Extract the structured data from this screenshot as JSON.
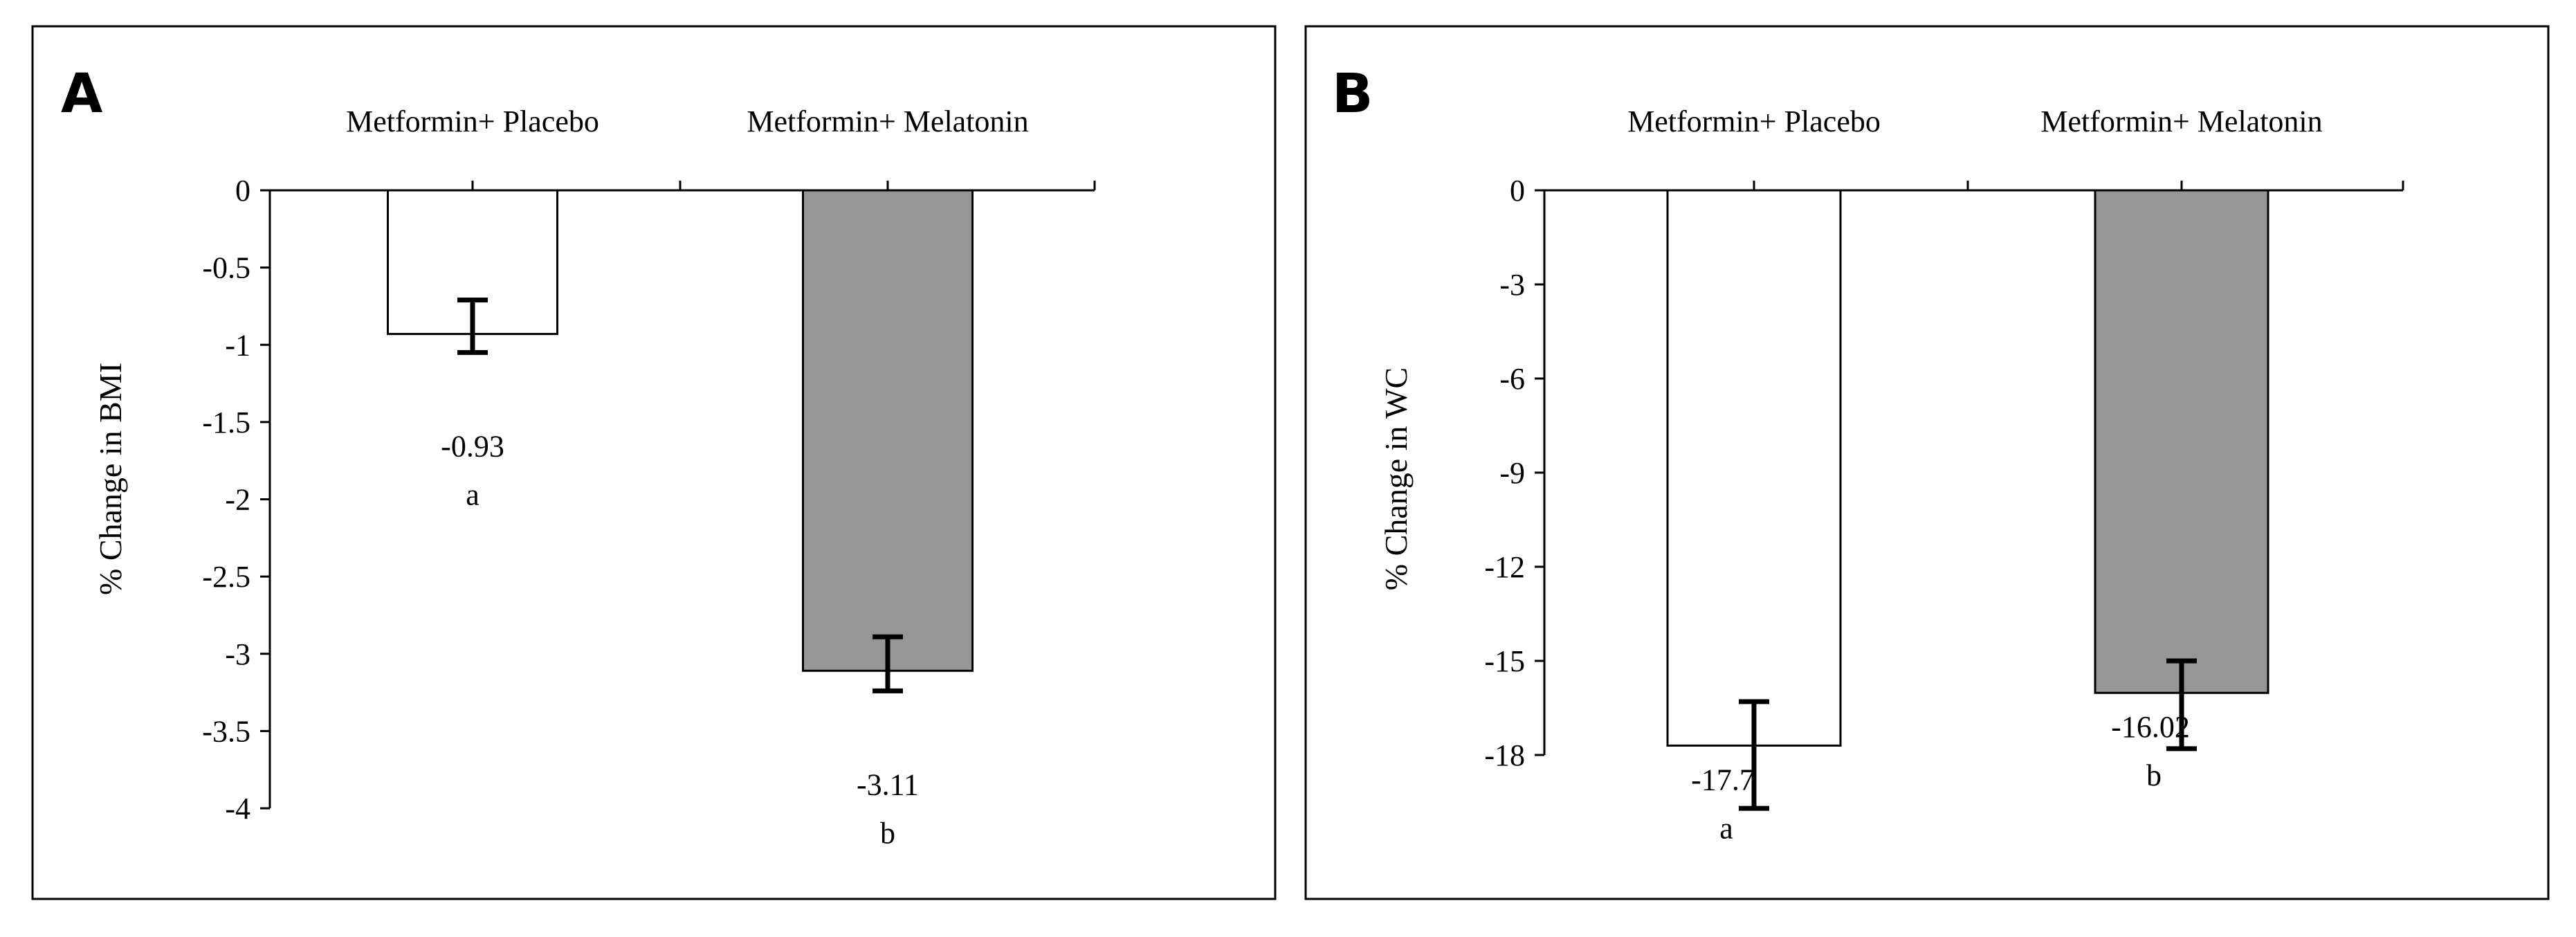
{
  "colors": {
    "frame": "#000000",
    "bar_placebo": "#ffffff",
    "bar_melatonin": "#969696",
    "bar_stroke": "#000000"
  },
  "chart_data": [
    {
      "type": "bar",
      "panel_label": "A",
      "categories": [
        "Metformin+ Placebo",
        "Metformin+ Melatonin"
      ],
      "values": [
        -0.93,
        -3.11
      ],
      "error_bars": [
        [
          -1.05,
          -0.71
        ],
        [
          -3.24,
          -2.89
        ]
      ],
      "data_labels": [
        "-0.93",
        "-3.11"
      ],
      "significance_letters": [
        "a",
        "b"
      ],
      "ylabel": "% Change in BMI",
      "xlabel": "",
      "ylim": [
        -4,
        0
      ],
      "yticks": [
        0,
        -0.5,
        -1,
        -1.5,
        -2,
        -2.5,
        -3,
        -3.5,
        -4
      ],
      "ytick_labels": [
        "0",
        "-0.5",
        "-1",
        "-1.5",
        "-2",
        "-2.5",
        "-3",
        "-3.5",
        "-4"
      ],
      "grid": false,
      "category_labels_position": "top"
    },
    {
      "type": "bar",
      "panel_label": "B",
      "categories": [
        "Metformin+ Placebo",
        "Metformin+ Melatonin"
      ],
      "values": [
        -17.7,
        -16.02
      ],
      "error_bars": [
        [
          -19.7,
          -16.3
        ],
        [
          -17.8,
          -15.0
        ]
      ],
      "data_labels": [
        "-17.7",
        "-16.02"
      ],
      "significance_letters": [
        "a",
        "b"
      ],
      "ylabel": "% Change in WC",
      "xlabel": "",
      "ylim": [
        -18,
        0
      ],
      "yticks": [
        0,
        -3,
        -6,
        -9,
        -12,
        -15,
        -18
      ],
      "ytick_labels": [
        "0",
        "-3",
        "-6",
        "-9",
        "-12",
        "-15",
        "-18"
      ],
      "grid": false,
      "category_labels_position": "top"
    }
  ]
}
